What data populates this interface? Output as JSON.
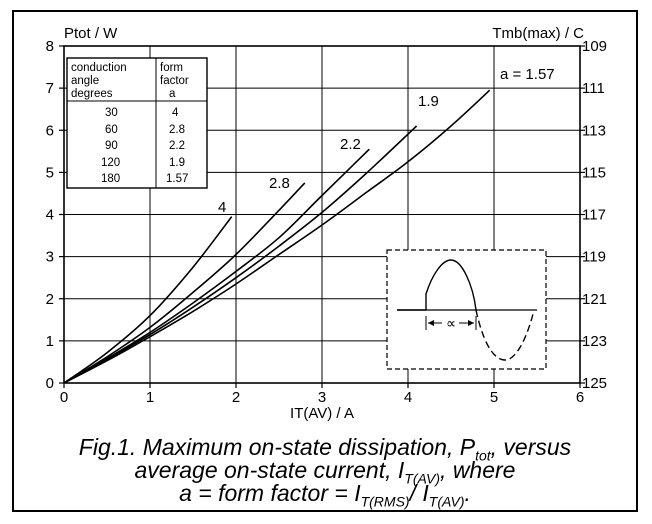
{
  "chart_data": {
    "type": "line",
    "xlabel": "IT(AV) / A",
    "ylabel": "Ptot / W",
    "y2label": "Tmb(max) / C",
    "xlim": [
      0,
      6
    ],
    "ylim": [
      0,
      8
    ],
    "xticks": [
      "0",
      "1",
      "2",
      "3",
      "4",
      "5",
      "6"
    ],
    "yticks": [
      "0",
      "1",
      "2",
      "3",
      "4",
      "5",
      "6",
      "7",
      "8"
    ],
    "y2ticks": [
      "125",
      "123",
      "121",
      "119",
      "117",
      "115",
      "113",
      "111",
      "109"
    ],
    "grid": true,
    "series": [
      {
        "name": "4",
        "points": [
          [
            0,
            0
          ],
          [
            0.5,
            0.72
          ],
          [
            1,
            1.6
          ],
          [
            1.5,
            2.75
          ],
          [
            1.95,
            3.95
          ]
        ]
      },
      {
        "name": "2.8",
        "points": [
          [
            0,
            0
          ],
          [
            0.5,
            0.62
          ],
          [
            1,
            1.32
          ],
          [
            1.5,
            2.15
          ],
          [
            2,
            3.05
          ],
          [
            2.5,
            4.1
          ],
          [
            2.8,
            4.75
          ]
        ]
      },
      {
        "name": "2.2",
        "points": [
          [
            0,
            0
          ],
          [
            0.5,
            0.58
          ],
          [
            1,
            1.2
          ],
          [
            1.5,
            1.9
          ],
          [
            2,
            2.65
          ],
          [
            2.5,
            3.45
          ],
          [
            3,
            4.45
          ],
          [
            3.55,
            5.55
          ]
        ]
      },
      {
        "name": "1.9",
        "points": [
          [
            0,
            0
          ],
          [
            0.5,
            0.56
          ],
          [
            1,
            1.15
          ],
          [
            1.5,
            1.8
          ],
          [
            2,
            2.5
          ],
          [
            2.5,
            3.25
          ],
          [
            3,
            4.05
          ],
          [
            3.5,
            4.95
          ],
          [
            4.1,
            6.1
          ]
        ]
      },
      {
        "name": "a = 1.57",
        "points": [
          [
            0,
            0
          ],
          [
            0.5,
            0.53
          ],
          [
            1,
            1.1
          ],
          [
            1.5,
            1.7
          ],
          [
            2,
            2.35
          ],
          [
            2.5,
            3.05
          ],
          [
            3,
            3.75
          ],
          [
            3.5,
            4.5
          ],
          [
            4,
            5.25
          ],
          [
            4.5,
            6.1
          ],
          [
            4.95,
            6.95
          ]
        ]
      }
    ],
    "curve_labels": [
      "4",
      "2.8",
      "2.2",
      "1.9",
      "a = 1.57"
    ]
  },
  "table": {
    "header_col1": [
      "conduction",
      "angle",
      "degrees"
    ],
    "header_col2": [
      "form",
      "factor",
      "a"
    ],
    "rows": [
      {
        "angle": "30",
        "factor": "4"
      },
      {
        "angle": "60",
        "factor": "2.8"
      },
      {
        "angle": "90",
        "factor": "2.2"
      },
      {
        "angle": "120",
        "factor": "1.9"
      },
      {
        "angle": "180",
        "factor": "1.57"
      }
    ]
  },
  "inset": {
    "alpha_symbol": "∝"
  },
  "caption": {
    "line1_a": "Fig.1.  Maximum on-state dissipation, P",
    "line1_sub": "tot",
    "line1_b": ", versus",
    "line2_a": "average on-state current, I",
    "line2_sub": "T(AV)",
    "line2_b": ", where",
    "line3_a": "a = form factor = I",
    "line3_sub1": "T(RMS)",
    "line3_mid": "/ I",
    "line3_sub2": "T(AV)",
    "line3_b": "."
  }
}
